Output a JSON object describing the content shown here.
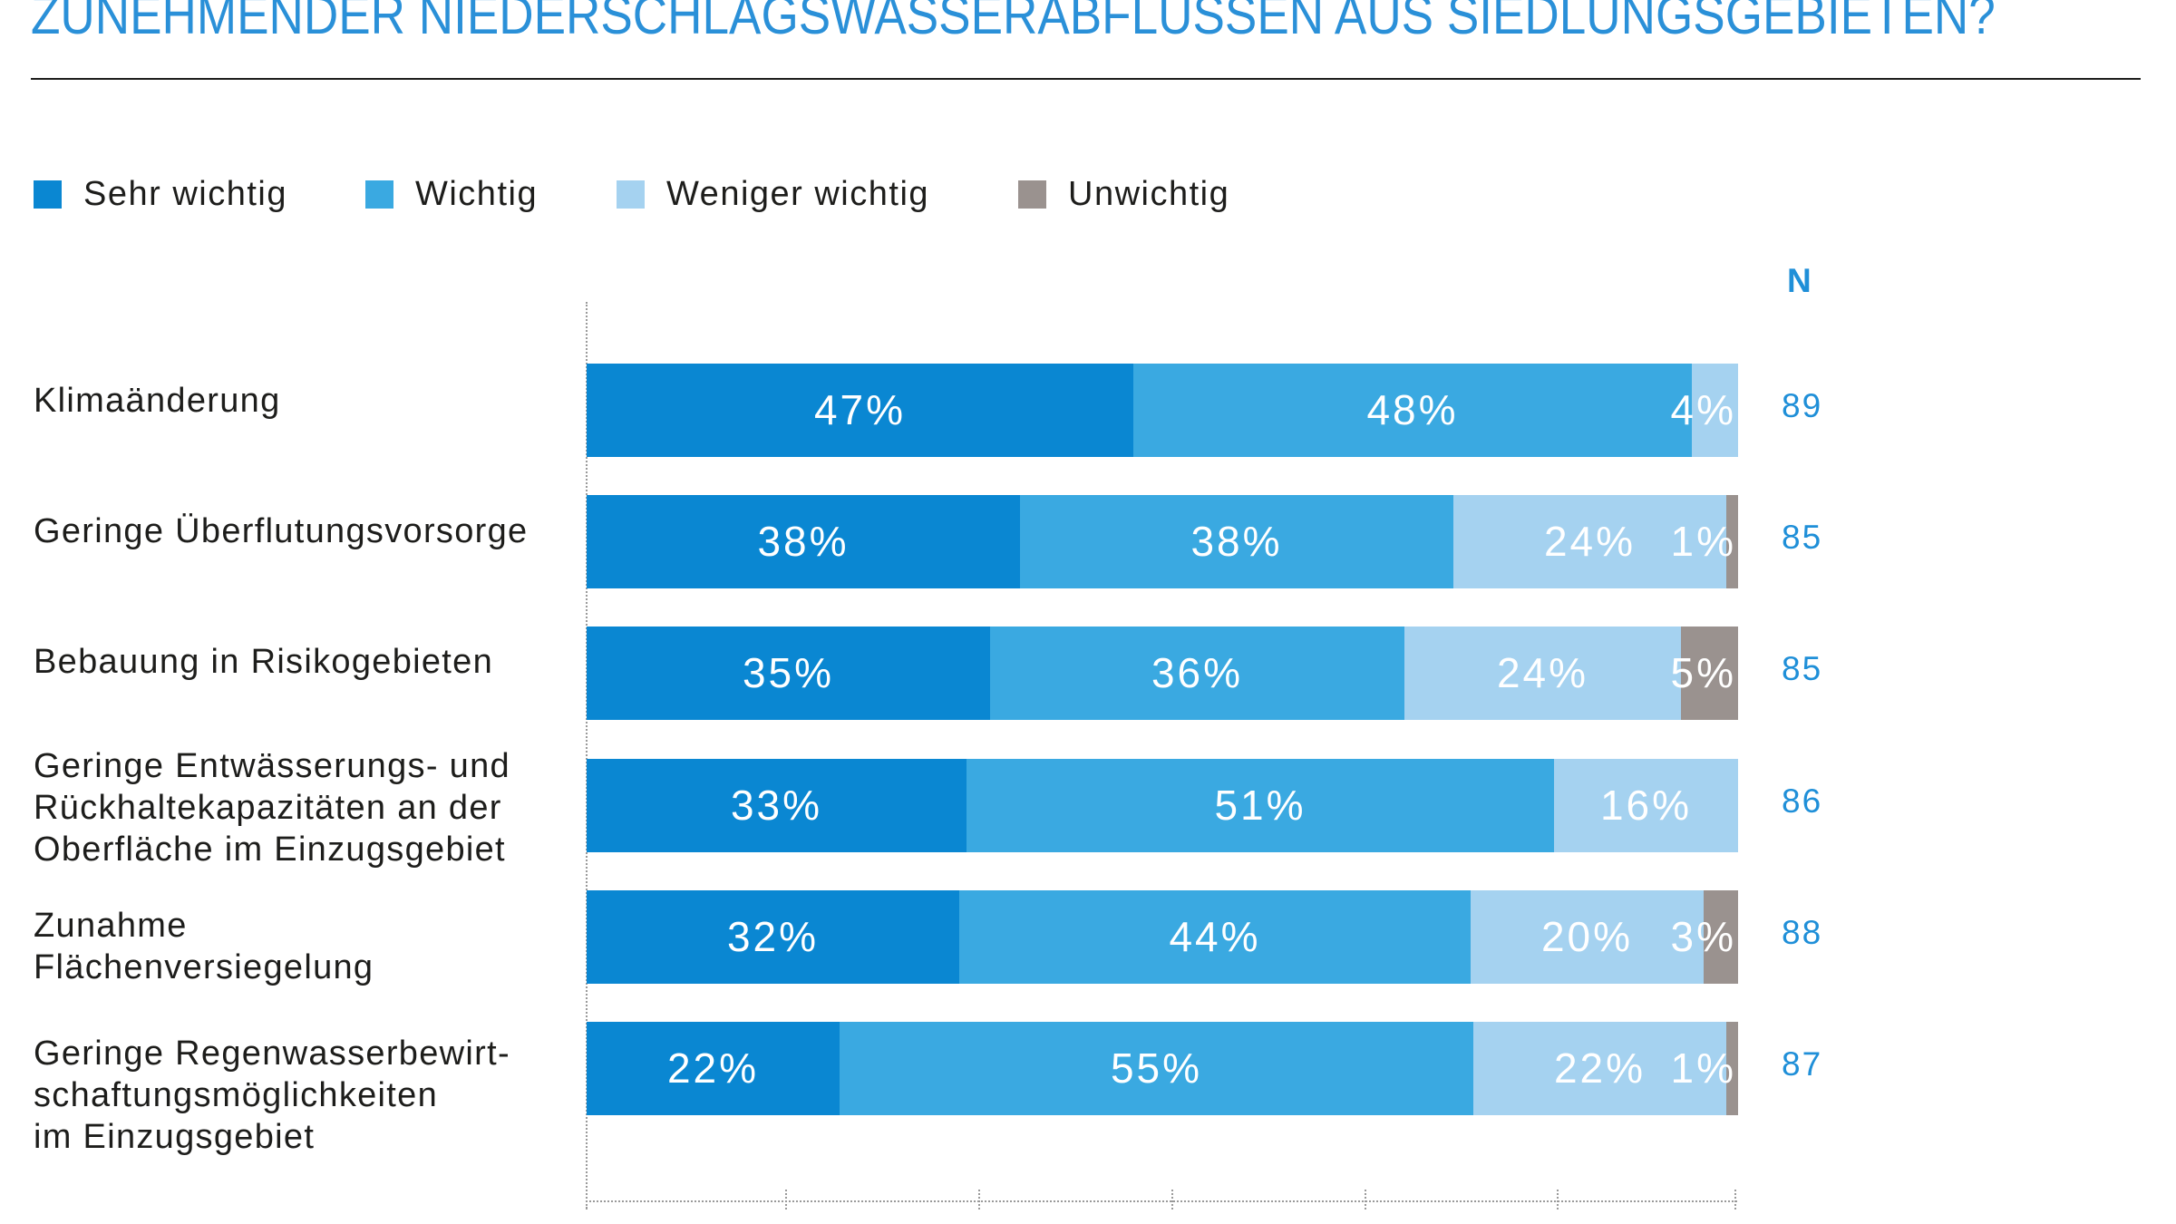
{
  "colors": {
    "title": "#2a90d8",
    "text": "#1d1d1b",
    "rule": "#1d1d1b",
    "n_values": "#1f8fd8",
    "axis": "#9a9a9a",
    "data_label": "#ffffff"
  },
  "chart_data": {
    "type": "bar",
    "orientation": "horizontal",
    "stacked": true,
    "title": "ZUNEHMENDER NIEDERSCHLAGSWASSERABFLÜSSEN AUS SIEDLUNGSGEBIETEN?",
    "categories": [
      "Klimaänderung",
      "Geringe Überflutungsvorsorge",
      "Bebauung in Risikogebieten",
      "Geringe Entwässerungs- und\nRückhaltekapazitäten an der\nOberfläche im Einzugsgebiet",
      "Zunahme\nFlächenversiegelung",
      "Geringe Regenwasserbewirt-\nschaftungsmöglichkeiten\nim Einzugsgebiet"
    ],
    "series": [
      {
        "name": "Sehr wichtig",
        "color": "#0a87d2",
        "values": [
          47,
          38,
          35,
          33,
          32,
          22
        ]
      },
      {
        "name": "Wichtig",
        "color": "#3aa9e1",
        "values": [
          48,
          38,
          36,
          51,
          44,
          55
        ]
      },
      {
        "name": "Weniger wichtig",
        "color": "#a5d2f0",
        "values": [
          4,
          24,
          24,
          16,
          20,
          22
        ]
      },
      {
        "name": "Unwichtig",
        "color": "#9a928f",
        "values": [
          null,
          1,
          5,
          null,
          3,
          1
        ]
      }
    ],
    "value_suffix": "%",
    "n_label": "N",
    "n_values": [
      89,
      85,
      85,
      86,
      88,
      87
    ],
    "xlim": [
      0,
      100
    ],
    "grid": false,
    "legend_position": "top-left"
  }
}
